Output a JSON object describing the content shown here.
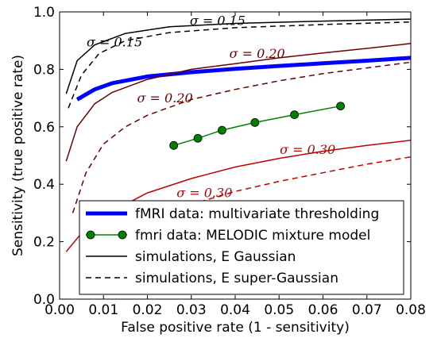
{
  "chart_data": {
    "type": "line",
    "xlabel": "False positive rate (1 - sensitivity)",
    "ylabel": "Sensitivity (true positive rate)",
    "xlim": [
      0.0,
      0.08
    ],
    "ylim": [
      0.0,
      1.0
    ],
    "xticks": [
      "0.00",
      "0.01",
      "0.02",
      "0.03",
      "0.04",
      "0.05",
      "0.06",
      "0.07",
      "0.08"
    ],
    "yticks": [
      "0.0",
      "0.2",
      "0.4",
      "0.6",
      "0.8",
      "1.0"
    ],
    "grid": false,
    "legend_position": "bottom-right",
    "series": [
      {
        "name": "fMRI data: multivariate thresholding",
        "color": "#0000ff",
        "style": "solid-thick",
        "x": [
          0.004,
          0.008,
          0.012,
          0.02,
          0.03,
          0.04,
          0.05,
          0.06,
          0.07,
          0.08
        ],
        "y": [
          0.695,
          0.73,
          0.752,
          0.775,
          0.79,
          0.802,
          0.812,
          0.821,
          0.83,
          0.84
        ]
      },
      {
        "name": "fmri data: MELODIC mixture model",
        "color": "#008000",
        "style": "line-markers",
        "x": [
          0.026,
          0.0315,
          0.037,
          0.0445,
          0.0535,
          0.064
        ],
        "y": [
          0.535,
          0.56,
          0.588,
          0.615,
          0.642,
          0.672
        ]
      },
      {
        "name": "simulations, E Gaussian",
        "color": "#000000",
        "style": "solid",
        "x": [
          0.0015,
          0.004,
          0.008,
          0.015,
          0.025,
          0.04,
          0.06,
          0.08
        ],
        "y": [
          0.715,
          0.83,
          0.885,
          0.925,
          0.948,
          0.96,
          0.968,
          0.975
        ]
      },
      {
        "name": "simulations, E super-Gaussian",
        "color": "#000000",
        "style": "dashed",
        "x": [
          0.002,
          0.005,
          0.009,
          0.015,
          0.025,
          0.04,
          0.06,
          0.08
        ],
        "y": [
          0.665,
          0.78,
          0.855,
          0.9,
          0.928,
          0.945,
          0.956,
          0.965
        ]
      },
      {
        "name": "",
        "color": "#6b0000",
        "style": "solid",
        "x": [
          0.0015,
          0.004,
          0.008,
          0.012,
          0.02,
          0.03,
          0.04,
          0.05,
          0.06,
          0.07,
          0.08
        ],
        "y": [
          0.48,
          0.6,
          0.68,
          0.72,
          0.765,
          0.8,
          0.82,
          0.84,
          0.857,
          0.873,
          0.89
        ]
      },
      {
        "name": "",
        "color": "#6b0000",
        "style": "dashed",
        "x": [
          0.003,
          0.006,
          0.01,
          0.015,
          0.02,
          0.03,
          0.04,
          0.05,
          0.06,
          0.07,
          0.08
        ],
        "y": [
          0.3,
          0.44,
          0.54,
          0.6,
          0.64,
          0.695,
          0.73,
          0.76,
          0.785,
          0.805,
          0.825
        ]
      },
      {
        "name": "",
        "color": "#c00000",
        "style": "solid",
        "x": [
          0.0015,
          0.005,
          0.01,
          0.02,
          0.03,
          0.04,
          0.05,
          0.06,
          0.07,
          0.08
        ],
        "y": [
          0.165,
          0.23,
          0.29,
          0.37,
          0.42,
          0.46,
          0.49,
          0.515,
          0.535,
          0.553
        ]
      },
      {
        "name": "",
        "color": "#c00000",
        "style": "dashed",
        "x": [
          0.005,
          0.01,
          0.02,
          0.03,
          0.04,
          0.05,
          0.06,
          0.07,
          0.08
        ],
        "y": [
          0.13,
          0.19,
          0.27,
          0.33,
          0.375,
          0.41,
          0.44,
          0.47,
          0.495
        ]
      }
    ],
    "annotations": [
      {
        "text": "σ = 0.15",
        "x": 0.036,
        "y": 0.955,
        "color": "#000000"
      },
      {
        "text": "σ = 0.15",
        "x": 0.0125,
        "y": 0.88,
        "color": "#000000"
      },
      {
        "text": "σ = 0.20",
        "x": 0.045,
        "y": 0.84,
        "color": "#6b0000"
      },
      {
        "text": "σ = 0.20",
        "x": 0.024,
        "y": 0.685,
        "color": "#6b0000"
      },
      {
        "text": "σ = 0.30",
        "x": 0.0565,
        "y": 0.505,
        "color": "#c00000"
      },
      {
        "text": "σ = 0.30",
        "x": 0.033,
        "y": 0.355,
        "color": "#c00000"
      }
    ]
  }
}
